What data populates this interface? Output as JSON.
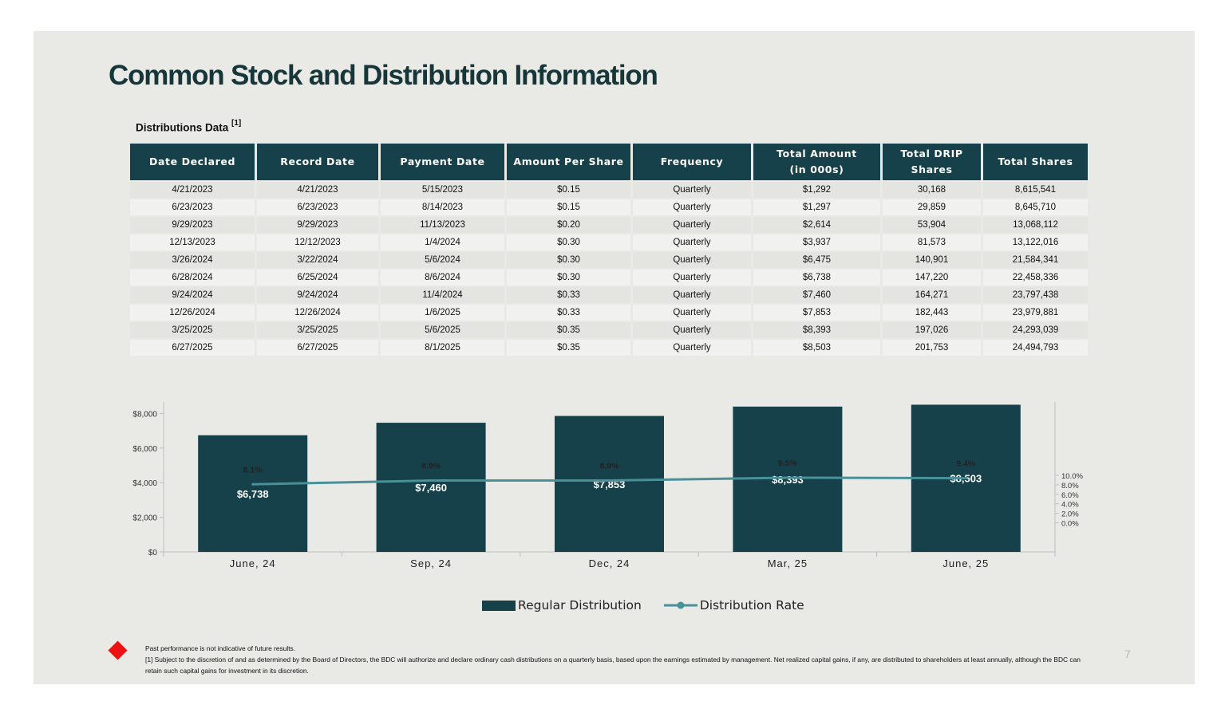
{
  "title": "Common Stock and Distribution Information",
  "section": {
    "label": "Distributions Data",
    "ref": "[1]"
  },
  "table": {
    "headers": [
      [
        "Date Declared"
      ],
      [
        "Record Date"
      ],
      [
        "Payment Date"
      ],
      [
        "Amount Per Share"
      ],
      [
        "Frequency"
      ],
      [
        "Total Amount",
        "(in 000s)"
      ],
      [
        "Total DRIP",
        "Shares"
      ],
      [
        "Total Shares"
      ]
    ],
    "rows": [
      [
        "4/21/2023",
        "4/21/2023",
        "5/15/2023",
        "$0.15",
        "Quarterly",
        "$1,292",
        "30,168",
        "8,615,541"
      ],
      [
        "6/23/2023",
        "6/23/2023",
        "8/14/2023",
        "$0.15",
        "Quarterly",
        "$1,297",
        "29,859",
        "8,645,710"
      ],
      [
        "9/29/2023",
        "9/29/2023",
        "11/13/2023",
        "$0.20",
        "Quarterly",
        "$2,614",
        "53,904",
        "13,068,112"
      ],
      [
        "12/13/2023",
        "12/12/2023",
        "1/4/2024",
        "$0.30",
        "Quarterly",
        "$3,937",
        "81,573",
        "13,122,016"
      ],
      [
        "3/26/2024",
        "3/22/2024",
        "5/6/2024",
        "$0.30",
        "Quarterly",
        "$6,475",
        "140,901",
        "21,584,341"
      ],
      [
        "6/28/2024",
        "6/25/2024",
        "8/6/2024",
        "$0.30",
        "Quarterly",
        "$6,738",
        "147,220",
        "22,458,336"
      ],
      [
        "9/24/2024",
        "9/24/2024",
        "11/4/2024",
        "$0.33",
        "Quarterly",
        "$7,460",
        "164,271",
        "23,797,438"
      ],
      [
        "12/26/2024",
        "12/26/2024",
        "1/6/2025",
        "$0.33",
        "Quarterly",
        "$7,853",
        "182,443",
        "23,979,881"
      ],
      [
        "3/25/2025",
        "3/25/2025",
        "5/6/2025",
        "$0.35",
        "Quarterly",
        "$8,393",
        "197,026",
        "24,293,039"
      ],
      [
        "6/27/2025",
        "6/27/2025",
        "8/1/2025",
        "$0.35",
        "Quarterly",
        "$8,503",
        "201,753",
        "24,494,793"
      ]
    ]
  },
  "chart_data": {
    "type": "bar",
    "categories": [
      "June, 24",
      "Sep, 24",
      "Dec, 24",
      "Mar, 25",
      "June, 25"
    ],
    "series": [
      {
        "name": "Regular Distribution",
        "type": "bar",
        "axis": "left",
        "values": [
          6738,
          7460,
          7853,
          8393,
          8503
        ],
        "labels": [
          "$6,738",
          "$7,460",
          "$7,853",
          "$8,393",
          "$8,503"
        ],
        "color": "#17414a"
      },
      {
        "name": "Distribution Rate",
        "type": "line",
        "axis": "right",
        "values": [
          8.1,
          8.9,
          8.9,
          9.5,
          9.4
        ],
        "labels": [
          "8.1%",
          "8.9%",
          "8.9%",
          "9.5%",
          "9.4%"
        ],
        "color": "#4a9098"
      }
    ],
    "y_left": {
      "ticks": [
        "$0",
        "$2,000",
        "$4,000",
        "$6,000",
        "$8,000"
      ],
      "tick_values": [
        0,
        2000,
        4000,
        6000,
        8000
      ],
      "ylim": [
        0,
        8800
      ]
    },
    "y_right": {
      "ticks": [
        "0.0%",
        "2.0%",
        "4.0%",
        "6.0%",
        "8.0%",
        "10.0%"
      ],
      "tick_values": [
        0,
        2,
        4,
        6,
        8,
        10
      ]
    },
    "grid": false,
    "legend": "bottom"
  },
  "footnotes": [
    "Past performance is not indicative of future results.",
    "[1] Subject to the discretion of and as determined by the Board of Directors, the BDC will authorize and declare ordinary cash distributions on a quarterly basis, based upon the earnings estimated by management. Net realized capital gains, if any, are distributed to shareholders at least annually, although the BDC can retain such capital gains for investment in its discretion."
  ],
  "page_number": "7",
  "colors": {
    "accent": "#17414a",
    "line": "#4a9098",
    "slide_bg": "#e9e9e5",
    "marker": "#ee1111"
  }
}
